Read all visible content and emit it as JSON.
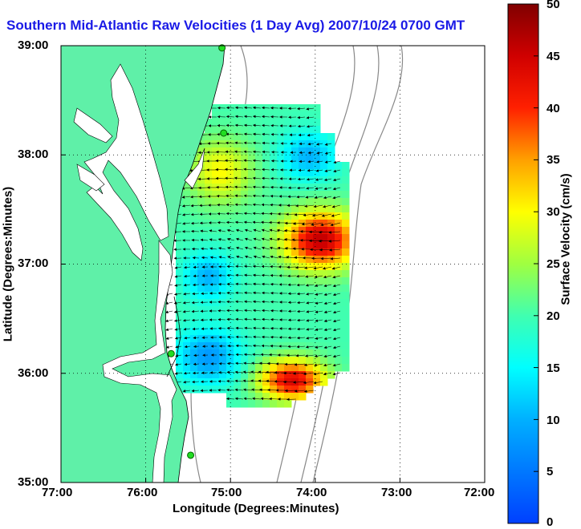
{
  "title": "Southern Mid-Atlantic Raw Velocities (1 Day Avg) 2007/10/24 0700 GMT",
  "map": {
    "xlabel": "Longitude (Degrees:Minutes)",
    "ylabel": "Latitude (Degrees:Minutes)",
    "x_ticks": [
      "77:00",
      "76:00",
      "75:00",
      "74:00",
      "73:00",
      "72:00"
    ],
    "y_ticks": [
      "39:00",
      "38:00",
      "37:00",
      "36:00",
      "35:00"
    ],
    "lon_range": [
      -77,
      -72
    ],
    "lat_range": [
      35,
      39
    ],
    "land_color": "#5ff0a8",
    "grid": true
  },
  "colorbar": {
    "label": "Surface Velocity (cm/s)",
    "ticks": [
      "50",
      "45",
      "40",
      "35",
      "30",
      "25",
      "20",
      "15",
      "10",
      "5",
      "0"
    ],
    "range": [
      0,
      50
    ],
    "colormap": "jet"
  },
  "stations": [
    {
      "lon": -75.1,
      "lat": 38.98
    },
    {
      "lon": -75.08,
      "lat": 38.2
    },
    {
      "lon": -75.7,
      "lat": 36.18
    },
    {
      "lon": -75.47,
      "lat": 35.25
    }
  ]
}
